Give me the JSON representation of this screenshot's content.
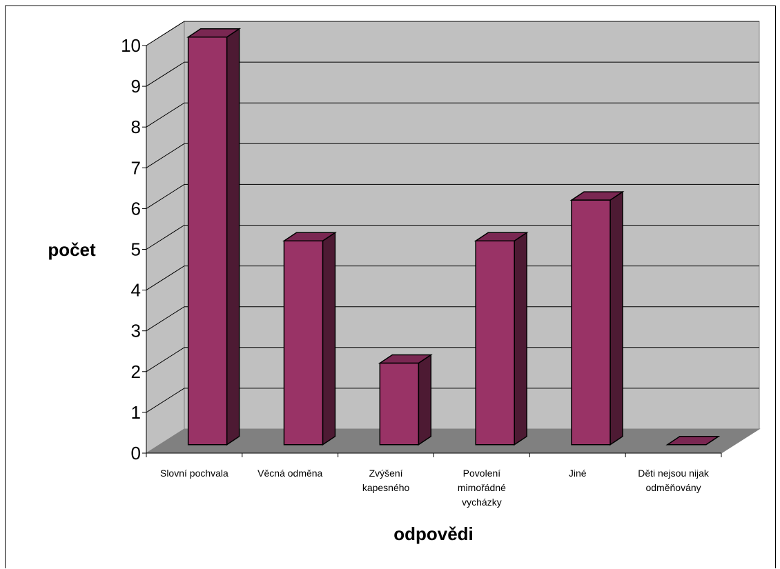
{
  "chart_data": {
    "type": "bar",
    "title": "",
    "xlabel": "odpovědi",
    "ylabel": "počet",
    "categories": [
      [
        "Slovní pochvala"
      ],
      [
        "Věcná odměna"
      ],
      [
        "Zvýšení",
        "kapesného"
      ],
      [
        "Povolení",
        "mimořádné",
        "vycházky"
      ],
      [
        "Jiné"
      ],
      [
        "Děti nejsou nijak",
        "odměňovány"
      ]
    ],
    "values": [
      10,
      5,
      2,
      5,
      6,
      0
    ],
    "ylim": [
      0,
      10
    ],
    "yticks": [
      0,
      1,
      2,
      3,
      4,
      5,
      6,
      7,
      8,
      9,
      10
    ],
    "grid": true,
    "legend": "none",
    "colors": {
      "bar_front": "#993366",
      "bar_top": "#7a2752",
      "bar_side": "#4d1a33",
      "wall": "#c0c0c0",
      "floor": "#808080"
    }
  }
}
